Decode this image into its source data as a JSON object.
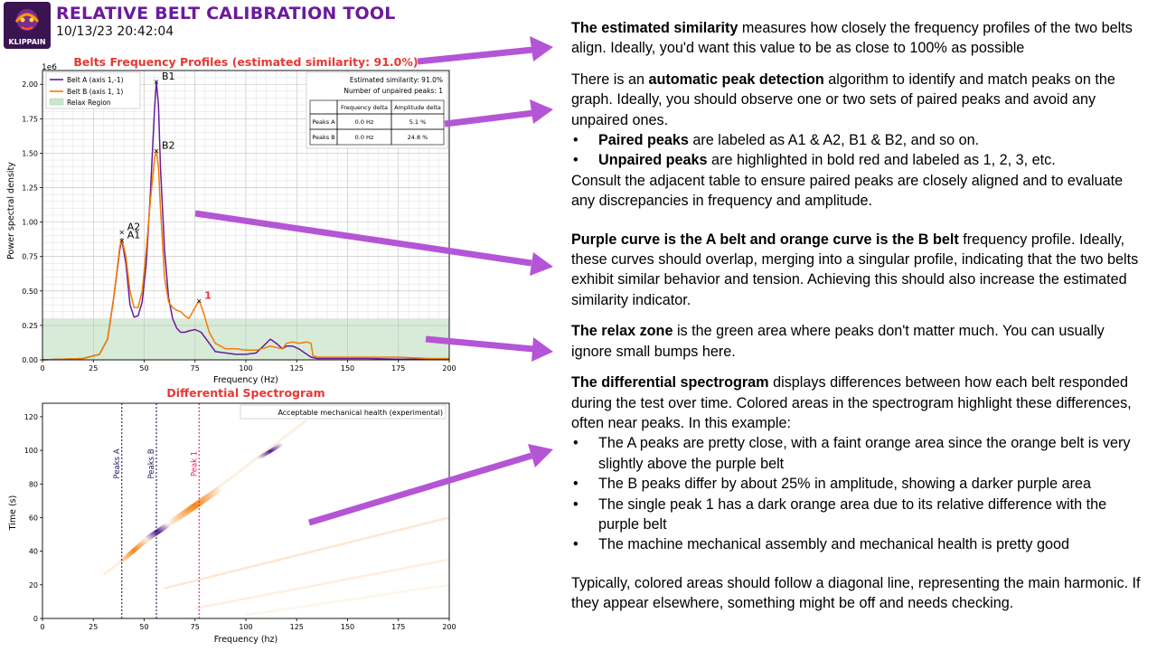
{
  "header": {
    "logo_text": "KLIPPAIN",
    "title": "RELATIVE BELT CALIBRATION TOOL",
    "timestamp": "10/13/23 20:42:04"
  },
  "colors": {
    "belt_a": "#6a1b9a",
    "belt_b": "#f57c00",
    "relax": "#c8e6c9",
    "title_red": "#e53935",
    "arrow": "#b455d6"
  },
  "chart_data": [
    {
      "type": "line",
      "title": "Belts Frequency Profiles (estimated similarity: 91.0%)",
      "xlabel": "Frequency (Hz)",
      "ylabel": "Power spectral density",
      "y_multiplier": "1e6",
      "xlim": [
        0,
        200
      ],
      "ylim": [
        0,
        2.1
      ],
      "xticks": [
        "0",
        "25",
        "50",
        "75",
        "100",
        "125",
        "150",
        "175",
        "200"
      ],
      "yticks": [
        "0.00",
        "0.25",
        "0.50",
        "0.75",
        "1.00",
        "1.25",
        "1.50",
        "1.75",
        "2.00"
      ],
      "grid": true,
      "legend": [
        "Belt A (axis 1,-1)",
        "Belt B (axis 1, 1)",
        "Relax Region"
      ],
      "legend_placement": "top-left",
      "relax_region_max": 0.3,
      "series": [
        {
          "name": "Belt A (axis 1,-1)",
          "x": [
            0,
            20,
            28,
            32,
            35,
            38,
            39,
            41,
            43,
            45,
            47,
            49,
            51,
            53,
            55,
            56,
            57,
            58,
            60,
            62,
            64,
            66,
            68,
            70,
            72,
            75,
            78,
            82,
            85,
            90,
            95,
            100,
            105,
            110,
            112,
            115,
            118,
            120,
            123,
            126,
            128,
            130,
            132,
            135,
            140,
            150,
            160,
            175,
            190,
            200
          ],
          "y": [
            0.0,
            0.01,
            0.04,
            0.15,
            0.45,
            0.8,
            0.87,
            0.7,
            0.4,
            0.31,
            0.32,
            0.42,
            0.7,
            1.2,
            1.8,
            2.02,
            1.85,
            1.4,
            0.8,
            0.45,
            0.3,
            0.23,
            0.2,
            0.2,
            0.21,
            0.22,
            0.2,
            0.12,
            0.06,
            0.05,
            0.04,
            0.04,
            0.05,
            0.12,
            0.15,
            0.12,
            0.08,
            0.1,
            0.1,
            0.08,
            0.06,
            0.04,
            0.02,
            0.01,
            0.01,
            0.01,
            0.01,
            0.005,
            0.005,
            0.003
          ]
        },
        {
          "name": "Belt B (axis 1, 1)",
          "x": [
            0,
            20,
            28,
            32,
            35,
            38,
            39,
            41,
            43,
            45,
            47,
            49,
            51,
            53,
            55,
            56,
            57,
            58,
            60,
            62,
            64,
            66,
            68,
            70,
            72,
            75,
            77,
            79,
            82,
            85,
            90,
            95,
            100,
            105,
            110,
            112,
            115,
            118,
            120,
            123,
            126,
            130,
            132,
            133,
            135,
            140,
            150,
            160,
            175,
            190,
            200
          ],
          "y": [
            0.0,
            0.01,
            0.04,
            0.15,
            0.45,
            0.82,
            0.88,
            0.75,
            0.5,
            0.38,
            0.38,
            0.5,
            0.8,
            1.15,
            1.45,
            1.52,
            1.4,
            1.1,
            0.6,
            0.42,
            0.38,
            0.36,
            0.35,
            0.32,
            0.3,
            0.38,
            0.43,
            0.35,
            0.2,
            0.12,
            0.08,
            0.08,
            0.07,
            0.07,
            0.09,
            0.1,
            0.09,
            0.08,
            0.12,
            0.13,
            0.12,
            0.13,
            0.12,
            0.03,
            0.02,
            0.02,
            0.02,
            0.02,
            0.02,
            0.01,
            0.01
          ]
        }
      ],
      "peak_labels": [
        {
          "label": "B1",
          "x": 56,
          "y": 2.02,
          "color": "#000000"
        },
        {
          "label": "B2",
          "x": 56,
          "y": 1.52,
          "color": "#000000"
        },
        {
          "label": "A2",
          "x": 39,
          "y": 0.93,
          "color": "#000000"
        },
        {
          "label": "A1",
          "x": 39,
          "y": 0.87,
          "color": "#000000"
        },
        {
          "label": "1",
          "x": 77,
          "y": 0.43,
          "color": "#e53935"
        }
      ],
      "info_box": {
        "line1": "Estimated similarity: 91.0%",
        "line2": "Number of unpaired peaks: 1"
      },
      "table": {
        "headers": [
          "",
          "Frequency delta",
          "Amplitude delta"
        ],
        "rows": [
          [
            "Peaks A",
            "0.0 Hz",
            "5.1 %"
          ],
          [
            "Peaks B",
            "0.0 Hz",
            "24.8 %"
          ]
        ]
      }
    },
    {
      "type": "heatmap",
      "title": "Differential Spectrogram",
      "xlabel": "Frequency (hz)",
      "ylabel": "Time (s)",
      "xlim": [
        0,
        200
      ],
      "ylim": [
        0,
        128
      ],
      "xticks": [
        "0",
        "25",
        "50",
        "75",
        "100",
        "125",
        "150",
        "175",
        "200"
      ],
      "yticks": [
        "0",
        "20",
        "40",
        "60",
        "80",
        "100",
        "120"
      ],
      "legend": [
        "Acceptable mechanical health (experimental)"
      ],
      "legend_placement": "top-right",
      "vlines": [
        {
          "label": "Peaks A",
          "x": 39,
          "color": "#1a1a5e"
        },
        {
          "label": "Peaks B",
          "x": 56,
          "color": "#1a1a5e"
        },
        {
          "label": "Peak 1",
          "x": 77,
          "color": "#e91e63"
        }
      ]
    }
  ],
  "notes": {
    "p1_bold": "The estimated similarity",
    "p1_rest": " measures how closely the frequency profiles of the two belts align. Ideally, you'd want this value to be as close to 100% as possible",
    "p2_a": "There is an ",
    "p2_bold": "automatic peak detection",
    "p2_rest": " algorithm to identify and match peaks on the graph. Ideally, you should observe one or two sets of paired peaks and avoid any unpaired ones.",
    "b1_bold": "Paired peaks",
    "b1_rest": " are labeled as A1 & A2, B1 & B2, and so on.",
    "b2_bold": "Unpaired peaks",
    "b2_rest": " are highlighted in bold red and labeled as 1, 2, 3, etc.",
    "p2_after": "Consult the adjacent table to ensure paired peaks are closely aligned and to evaluate any discrepancies in frequency and amplitude.",
    "p3_bold": "Purple curve is the A belt and orange curve is the B belt",
    "p3_rest": " frequency profile. Ideally, these curves should overlap, merging into a singular profile, indicating that the two belts exhibit similar behavior and tension. Achieving this should also increase the estimated similarity indicator.",
    "p4_bold": "The relax zone",
    "p4_rest": " is the green area where peaks don't matter much. You can usually ignore small bumps here.",
    "p5_bold": "The differential spectrogram",
    "p5_rest": " displays differences between how each belt responded during the test over time. Colored areas in the spectrogram highlight these differences, often near peaks. In this example:",
    "b3": "The A peaks are pretty close, with a faint orange area since the orange belt is very slightly above the purple belt",
    "b4": "The B peaks differ by about 25% in amplitude, showing a darker purple area",
    "b5": "The single peak 1 has a dark orange area due to its relative difference with the purple belt",
    "b6": "The machine mechanical assembly and mechanical health is pretty good",
    "p6": "Typically, colored areas should follow a diagonal line, representing the main harmonic. If they appear elsewhere, something might be off and needs checking."
  }
}
